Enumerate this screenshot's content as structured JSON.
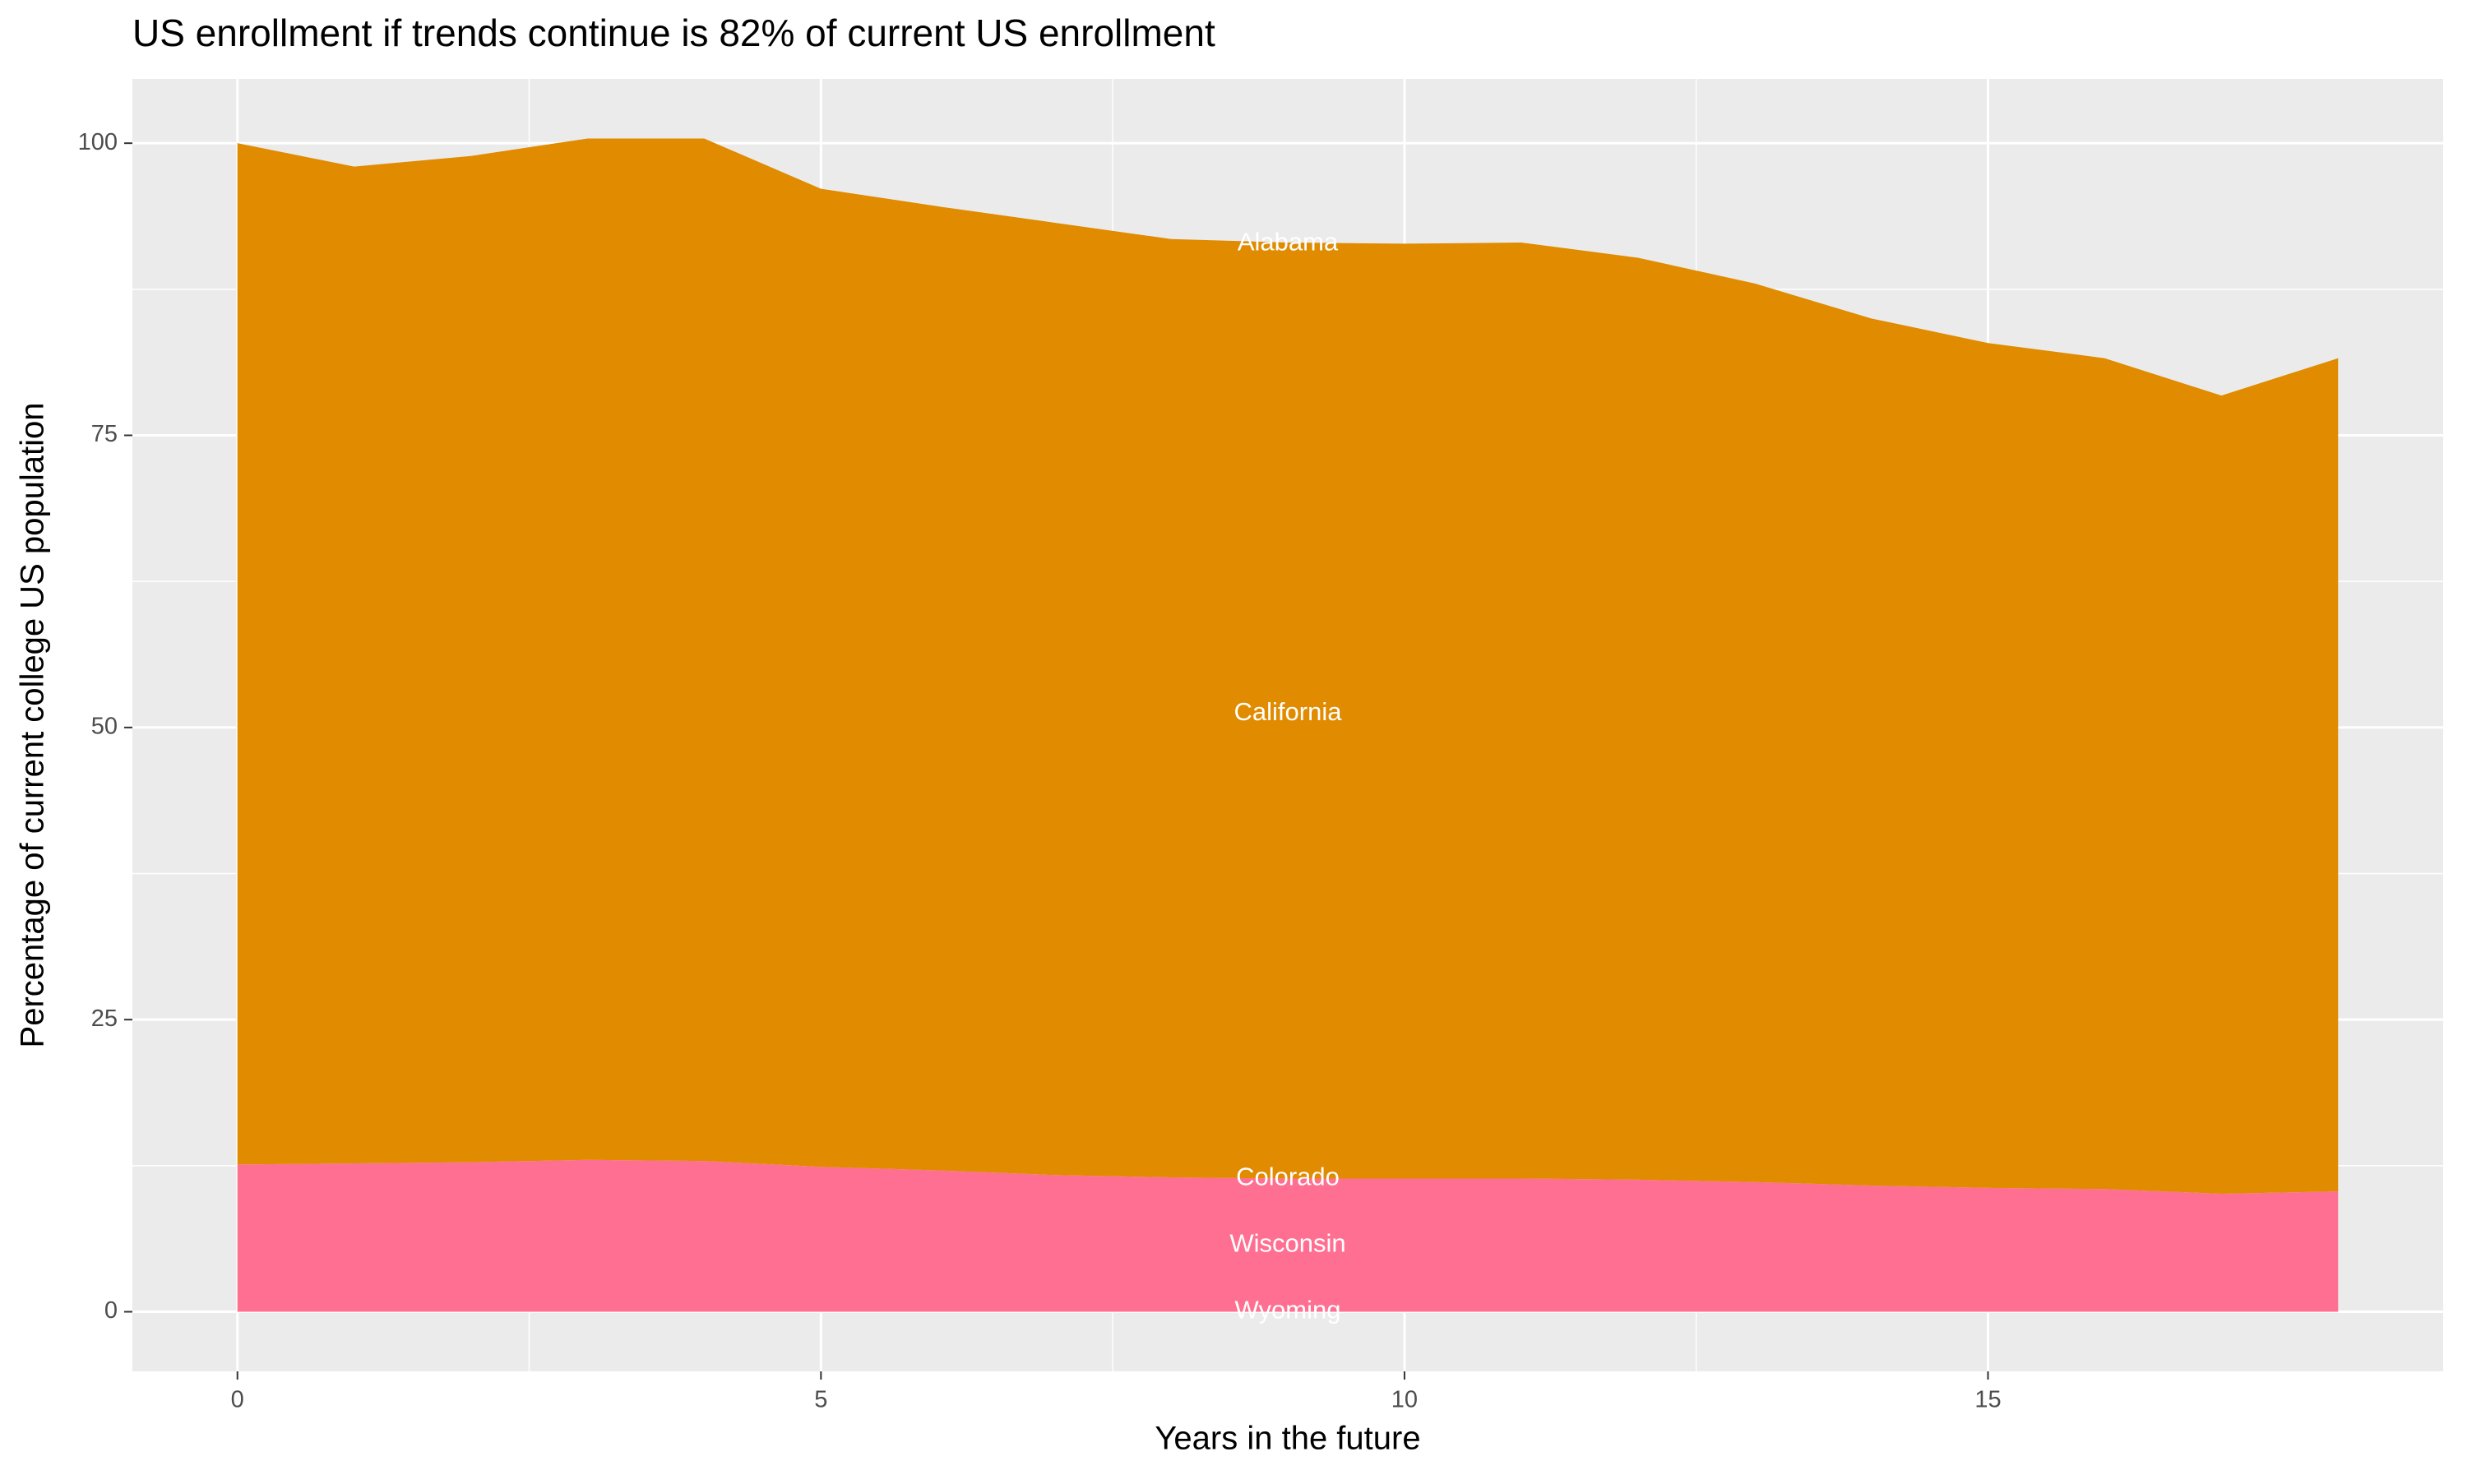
{
  "chart_data": {
    "type": "stacked-area",
    "title": "US enrollment if trends continue is 82% of current US enrollment",
    "x_label": "Years in the future",
    "y_label": "Percentage of current college US population",
    "x": [
      0,
      1,
      2,
      3,
      4,
      5,
      6,
      7,
      8,
      9,
      10,
      11,
      12,
      13,
      14,
      15,
      16,
      17,
      18
    ],
    "series": [
      {
        "color": "#ff6f91",
        "values": [
          12.6,
          12.7,
          12.8,
          13.0,
          12.9,
          12.4,
          12.1,
          11.7,
          11.5,
          11.4,
          11.4,
          11.4,
          11.3,
          11.1,
          10.8,
          10.6,
          10.5,
          10.1,
          10.3
        ]
      },
      {
        "color": "#e08b00",
        "values": [
          87.4,
          85.3,
          86.1,
          87.4,
          87.5,
          83.7,
          82.5,
          81.5,
          80.3,
          80.1,
          80.0,
          80.1,
          78.9,
          76.9,
          74.2,
          72.3,
          71.1,
          68.3,
          71.3
        ]
      }
    ],
    "annotations": [
      {
        "text": "Alabama",
        "x": 9,
        "y": 91.4
      },
      {
        "text": "California",
        "x": 9,
        "y": 51.2
      },
      {
        "text": "Colorado",
        "x": 9,
        "y": 11.4
      },
      {
        "text": "Wisconsin",
        "x": 9,
        "y": 5.7
      },
      {
        "text": "Wyoming",
        "x": 9,
        "y": 0
      }
    ],
    "xlim": [
      -0.9,
      18.9
    ],
    "ylim": [
      -5.1,
      105.5
    ],
    "xticks": [
      0,
      5,
      10,
      15
    ],
    "yticks": [
      0,
      25,
      50,
      75,
      100
    ],
    "grid": true
  }
}
